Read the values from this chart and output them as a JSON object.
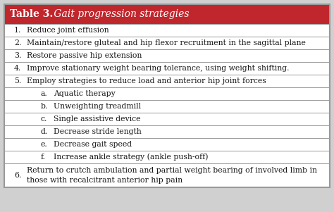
{
  "title_bold": "Table 3.",
  "title_italic": " Gait progression strategies",
  "header_bg": "#C0272D",
  "header_text_color": "#FFFFFF",
  "body_bg": "#FFFFFF",
  "border_color": "#999999",
  "text_color": "#1a1a1a",
  "rows": [
    {
      "indent": 1,
      "label": "1.",
      "text": "Reduce joint effusion"
    },
    {
      "indent": 1,
      "label": "2.",
      "text": "Maintain/restore gluteal and hip flexor recruitment in the sagittal plane"
    },
    {
      "indent": 1,
      "label": "3.",
      "text": "Restore passive hip extension"
    },
    {
      "indent": 1,
      "label": "4.",
      "text": "Improve stationary weight bearing tolerance, using weight shifting."
    },
    {
      "indent": 1,
      "label": "5.",
      "text": "Employ strategies to reduce load and anterior hip joint forces"
    },
    {
      "indent": 2,
      "label": "a.",
      "text": "Aquatic therapy"
    },
    {
      "indent": 2,
      "label": "b.",
      "text": "Unweighting treadmill"
    },
    {
      "indent": 2,
      "label": "c.",
      "text": "Single assistive device"
    },
    {
      "indent": 2,
      "label": "d.",
      "text": "Decrease stride length"
    },
    {
      "indent": 2,
      "label": "e.",
      "text": "Decrease gait speed"
    },
    {
      "indent": 2,
      "label": "f.",
      "text": "Increase ankle strategy (ankle push-off)"
    },
    {
      "indent": 1,
      "label": "6.",
      "text": "Return to crutch ambulation and partial weight bearing of involved limb in\nthose with recalcitrant anterior hip pain"
    }
  ],
  "figsize": [
    4.74,
    3.01
  ],
  "dpi": 100
}
